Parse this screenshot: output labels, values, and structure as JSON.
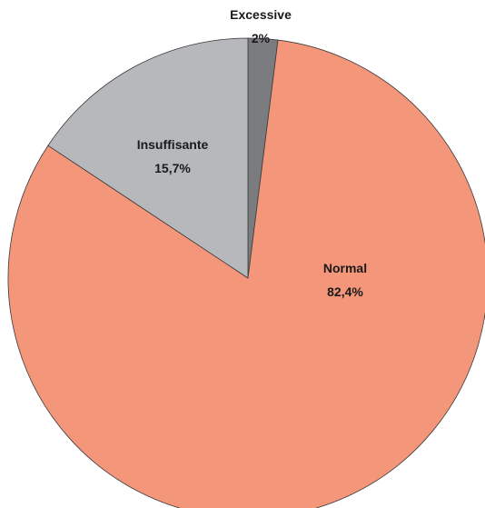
{
  "chart_data": {
    "type": "pie",
    "title": "",
    "slices": [
      {
        "label": "Excessive",
        "value_label": "2%",
        "value": 2.0,
        "color": "#7a7c80"
      },
      {
        "label": "Normal",
        "value_label": "82,4%",
        "value": 82.4,
        "color": "#f4967a"
      },
      {
        "label": "Insuffisante",
        "value_label": "15,7%",
        "value": 15.7,
        "color": "#b6b8bb"
      }
    ],
    "start_angle_deg": 0,
    "direction": "clockwise",
    "legend": "none"
  }
}
